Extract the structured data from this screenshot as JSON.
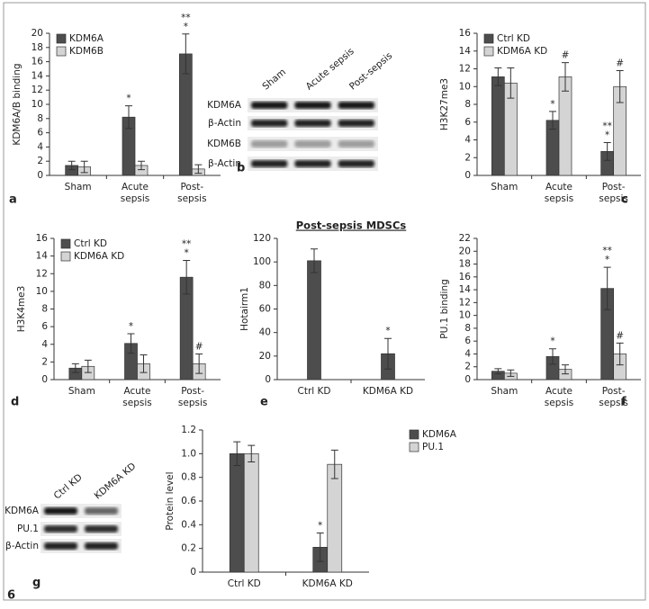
{
  "figure_number": "6",
  "blots": [
    {
      "label": "b",
      "lanes": [
        "Sham",
        "Acute sepsis",
        "Post-sepsis"
      ],
      "rows": [
        "KDM6A",
        "β-Actin",
        "KDM6B",
        "β-Actin"
      ]
    },
    {
      "lanes": [
        "Ctrl KD",
        "KDM6A KD"
      ],
      "rows": [
        "KDM6A",
        "PU.1",
        "β-Actin"
      ]
    }
  ],
  "chart_data": [
    {
      "type": "bar",
      "label": "a",
      "ylabel": "KDM6A/B binding",
      "ylim": [
        0,
        20
      ],
      "yticks": [
        0,
        2,
        4,
        6,
        8,
        10,
        12,
        14,
        16,
        18,
        20
      ],
      "legend": "upper left",
      "categories": [
        [
          "Sham"
        ],
        [
          "Acute",
          "sepsis"
        ],
        [
          "Post-",
          "sepsis"
        ]
      ],
      "series": [
        {
          "name": "KDM6A",
          "color": "#4d4d4d",
          "values": [
            1.4,
            8.2,
            17.1
          ],
          "errors": [
            0.6,
            1.6,
            2.8
          ],
          "sig": [
            null,
            [
              "*"
            ],
            [
              "**",
              "*"
            ]
          ]
        },
        {
          "name": "KDM6B",
          "color": "#d4d4d4",
          "values": [
            1.2,
            1.4,
            0.9
          ],
          "errors": [
            0.8,
            0.6,
            0.6
          ]
        }
      ]
    },
    {
      "type": "bar",
      "label": "c",
      "ylabel": "H3K27me3",
      "ylim": [
        0,
        16
      ],
      "yticks": [
        0,
        2,
        4,
        6,
        8,
        10,
        12,
        14,
        16
      ],
      "legend": "upper left",
      "categories": [
        [
          "Sham"
        ],
        [
          "Acute",
          "sepsis"
        ],
        [
          "Post-",
          "sepsis"
        ]
      ],
      "series": [
        {
          "name": "Ctrl KD",
          "color": "#4d4d4d",
          "values": [
            11.1,
            6.2,
            2.7
          ],
          "errors": [
            1.0,
            1.0,
            1.0
          ],
          "sig": [
            null,
            [
              "*"
            ],
            [
              "**",
              "*"
            ]
          ]
        },
        {
          "name": "KDM6A KD",
          "color": "#d4d4d4",
          "values": [
            10.4,
            11.1,
            10.0
          ],
          "errors": [
            1.7,
            1.6,
            1.8
          ],
          "sig": [
            null,
            [
              "#"
            ],
            [
              "#"
            ]
          ]
        }
      ]
    },
    {
      "type": "bar",
      "label": "d",
      "ylabel": "H3K4me3",
      "ylim": [
        0,
        16
      ],
      "yticks": [
        0,
        2,
        4,
        6,
        8,
        10,
        12,
        14,
        16
      ],
      "legend": "upper left",
      "categories": [
        [
          "Sham"
        ],
        [
          "Acute",
          "sepsis"
        ],
        [
          "Post-",
          "sepsis"
        ]
      ],
      "series": [
        {
          "name": "Ctrl KD",
          "color": "#4d4d4d",
          "values": [
            1.3,
            4.1,
            11.6
          ],
          "errors": [
            0.5,
            1.1,
            1.9
          ],
          "sig": [
            null,
            [
              "*"
            ],
            [
              "**",
              "*"
            ]
          ]
        },
        {
          "name": "KDM6A KD",
          "color": "#d4d4d4",
          "values": [
            1.5,
            1.8,
            1.8
          ],
          "errors": [
            0.7,
            1.0,
            1.1
          ],
          "sig": [
            null,
            null,
            [
              "#"
            ]
          ]
        }
      ]
    },
    {
      "type": "bar",
      "label": "e",
      "title": "Post-sepsis MDSCs",
      "ylabel": "Hotairm1",
      "ylim": [
        0,
        120
      ],
      "yticks": [
        0,
        20,
        40,
        60,
        80,
        100,
        120
      ],
      "categories": [
        [
          "Ctrl KD"
        ],
        [
          "KDM6A KD"
        ]
      ],
      "series": [
        {
          "color": "#4d4d4d",
          "values": [
            101,
            22
          ],
          "errors": [
            10,
            13
          ],
          "sig": [
            null,
            [
              "*"
            ]
          ]
        }
      ]
    },
    {
      "type": "bar",
      "label": "f",
      "ylabel": "PU.1 binding",
      "ylim": [
        0,
        22
      ],
      "yticks": [
        0,
        2,
        4,
        6,
        8,
        10,
        12,
        14,
        16,
        18,
        20,
        22
      ],
      "categories": [
        [
          "Sham"
        ],
        [
          "Acute",
          "sepsis"
        ],
        [
          "Post-",
          "sepsis"
        ]
      ],
      "series": [
        {
          "color": "#4d4d4d",
          "values": [
            1.3,
            3.6,
            14.2
          ],
          "errors": [
            0.4,
            1.2,
            3.3
          ],
          "sig": [
            null,
            [
              "*"
            ],
            [
              "**",
              "*"
            ]
          ]
        },
        {
          "color": "#d4d4d4",
          "values": [
            1.0,
            1.6,
            4.0
          ],
          "errors": [
            0.5,
            0.7,
            1.7
          ],
          "sig": [
            null,
            null,
            [
              "#"
            ]
          ]
        }
      ]
    },
    {
      "type": "bar",
      "label": "g",
      "ylabel": "Protein level",
      "ylim": [
        0,
        1.2
      ],
      "yticks": [
        0,
        0.2,
        0.4,
        0.6,
        0.8,
        {
          "value": 1,
          "label": "1.0"
        },
        1.2
      ],
      "legend": "right",
      "categories": [
        [
          "Ctrl KD"
        ],
        [
          "KDM6A KD"
        ]
      ],
      "series": [
        {
          "name": "KDM6A",
          "color": "#4d4d4d",
          "values": [
            1.0,
            0.21
          ],
          "errors": [
            0.1,
            0.12
          ],
          "sig": [
            null,
            [
              "*"
            ]
          ]
        },
        {
          "name": "PU.1",
          "color": "#d4d4d4",
          "values": [
            1.0,
            0.91
          ],
          "errors": [
            0.07,
            0.12
          ]
        }
      ]
    }
  ]
}
